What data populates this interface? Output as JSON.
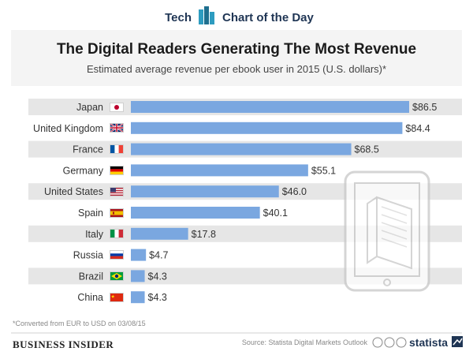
{
  "header": {
    "left_label": "Tech",
    "right_label": "Chart of the Day"
  },
  "chart_data": {
    "type": "bar",
    "orientation": "horizontal",
    "title": "The Digital Readers Generating The Most Revenue",
    "subtitle": "Estimated average revenue per ebook user in 2015 (U.S. dollars)*",
    "categories": [
      "Japan",
      "United Kingdom",
      "France",
      "Germany",
      "United States",
      "Spain",
      "Italy",
      "Russia",
      "Brazil",
      "China"
    ],
    "values": [
      86.5,
      84.4,
      68.5,
      55.1,
      46.0,
      40.1,
      17.8,
      4.7,
      4.3,
      4.3
    ],
    "value_labels": [
      "$86.5",
      "$84.4",
      "$68.5",
      "$55.1",
      "$46.0",
      "$40.1",
      "$17.8",
      "$4.7",
      "$4.3",
      "$4.3"
    ],
    "flags": [
      "japan-flag",
      "uk-flag",
      "france-flag",
      "germany-flag",
      "usa-flag",
      "spain-flag",
      "italy-flag",
      "russia-flag",
      "brazil-flag",
      "china-flag"
    ],
    "xlim": [
      0,
      86.5
    ],
    "xlabel": "",
    "ylabel": "",
    "grid": false,
    "bar_color": "#7aa7e0",
    "stripe_color": "#e6e6e6"
  },
  "footer": {
    "footnote": "*Converted from EUR to USD on 03/08/15",
    "brand": "BUSINESS INSIDER",
    "source": "Source: Statista Digital Markets Outlook",
    "statista": "statista"
  },
  "colors": {
    "navy": "#1f3554",
    "teal": "#2e9cc0",
    "gray_text": "#555555"
  }
}
